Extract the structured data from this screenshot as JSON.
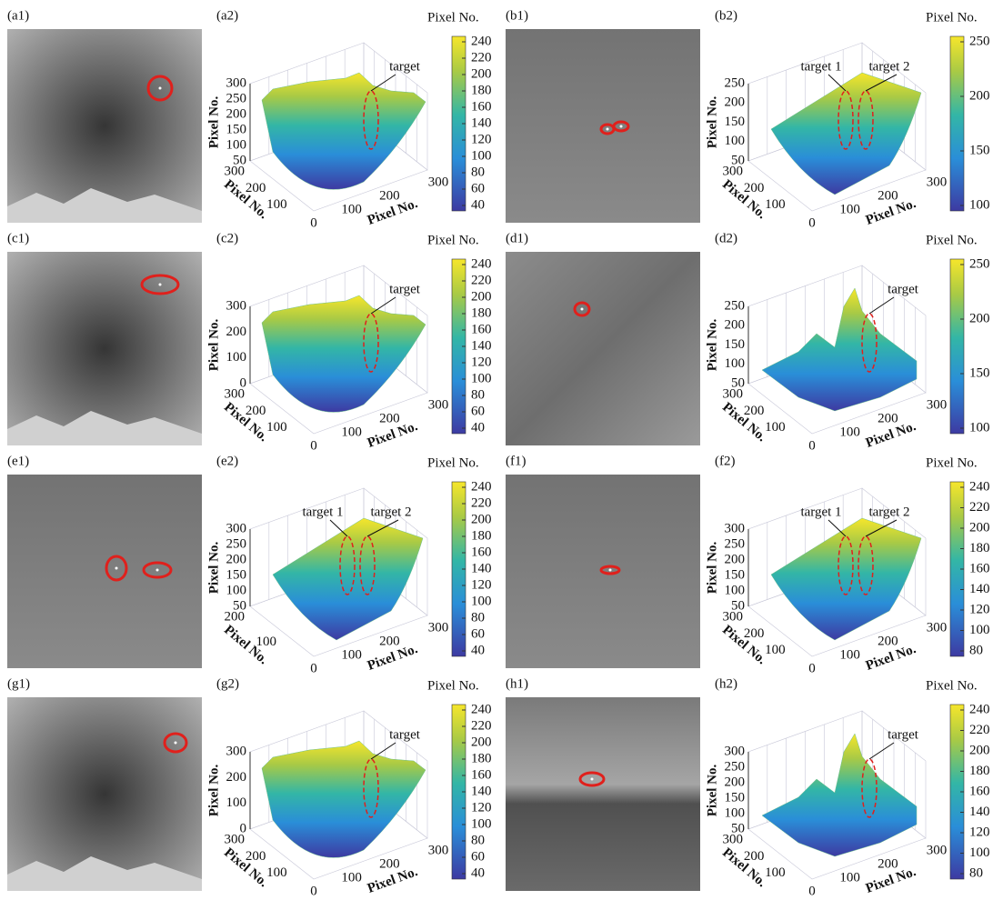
{
  "panels": [
    {
      "image_label": "(a1)",
      "plot_label": "(a2)",
      "colorbar_title": "Pixel No.",
      "colorbar_ticks": [
        240,
        220,
        200,
        180,
        160,
        140,
        120,
        100,
        80,
        60,
        40
      ],
      "z_axis_label": "Pixel No.",
      "z_ticks": [
        300,
        250,
        200,
        150,
        100,
        50
      ],
      "y_axis_label": "Pixel No.",
      "y_ticks": [
        300,
        200,
        100
      ],
      "x_axis_label": "Pixel No.",
      "x_ticks": [
        0,
        100,
        200,
        300
      ],
      "annotations": [
        "target"
      ]
    },
    {
      "image_label": "(b1)",
      "plot_label": "(b2)",
      "colorbar_title": "Pixel No.",
      "colorbar_ticks": [
        250,
        200,
        150,
        100
      ],
      "z_axis_label": "Pixel No.",
      "z_ticks": [
        250,
        200,
        150,
        100,
        50
      ],
      "y_axis_label": "Pixel No.",
      "y_ticks": [
        300,
        200,
        100
      ],
      "x_axis_label": "Pixel No.",
      "x_ticks": [
        0,
        100,
        200,
        300
      ],
      "annotations": [
        "target 1",
        "target 2"
      ]
    },
    {
      "image_label": "(c1)",
      "plot_label": "(c2)",
      "colorbar_title": "Pixel No.",
      "colorbar_ticks": [
        240,
        220,
        200,
        180,
        160,
        140,
        120,
        100,
        80,
        60,
        40
      ],
      "z_axis_label": "Pixel No.",
      "z_ticks": [
        300,
        200,
        100,
        0
      ],
      "y_axis_label": "Pixel No.",
      "y_ticks": [
        300,
        200,
        100
      ],
      "x_axis_label": "Pixel No.",
      "x_ticks": [
        0,
        100,
        200,
        300
      ],
      "annotations": [
        "target"
      ]
    },
    {
      "image_label": "(d1)",
      "plot_label": "(d2)",
      "colorbar_title": "Pixel No.",
      "colorbar_ticks": [
        250,
        200,
        150,
        100
      ],
      "z_axis_label": "Pixel No.",
      "z_ticks": [
        250,
        200,
        150,
        100,
        50
      ],
      "y_axis_label": "Pixel No.",
      "y_ticks": [
        300,
        200,
        100
      ],
      "x_axis_label": "Pixel No.",
      "x_ticks": [
        0,
        100,
        200,
        300
      ],
      "annotations": [
        "target"
      ]
    },
    {
      "image_label": "(e1)",
      "plot_label": "(e2)",
      "colorbar_title": "Pixel No.",
      "colorbar_ticks": [
        240,
        220,
        200,
        180,
        160,
        140,
        120,
        100,
        80,
        60,
        40
      ],
      "z_axis_label": "Pixel No.",
      "z_ticks": [
        300,
        250,
        200,
        150,
        100,
        50
      ],
      "y_axis_label": "Pixel No.",
      "y_ticks": [
        200,
        100
      ],
      "x_axis_label": "Pixel No.",
      "x_ticks": [
        0,
        100,
        200,
        300
      ],
      "annotations": [
        "target 1",
        "target 2"
      ]
    },
    {
      "image_label": "(f1)",
      "plot_label": "(f2)",
      "colorbar_title": "Pixel No.",
      "colorbar_ticks": [
        240,
        220,
        200,
        180,
        160,
        140,
        120,
        100,
        80
      ],
      "z_axis_label": "Pixel No.",
      "z_ticks": [
        300,
        250,
        200,
        150,
        100,
        50
      ],
      "y_axis_label": "Pixel No.",
      "y_ticks": [
        300,
        200,
        100
      ],
      "x_axis_label": "Pixel No.",
      "x_ticks": [
        0,
        100,
        200,
        300
      ],
      "annotations": [
        "target 1",
        "target 2"
      ]
    },
    {
      "image_label": "(g1)",
      "plot_label": "(g2)",
      "colorbar_title": "Pixel No.",
      "colorbar_ticks": [
        240,
        220,
        200,
        180,
        160,
        140,
        120,
        100,
        80,
        60,
        40
      ],
      "z_axis_label": "Pixel No.",
      "z_ticks": [
        300,
        200,
        100,
        0
      ],
      "y_axis_label": "Pixel No.",
      "y_ticks": [
        300,
        200,
        100
      ],
      "x_axis_label": "Pixel No.",
      "x_ticks": [
        0,
        100,
        200,
        300
      ],
      "annotations": [
        "target"
      ]
    },
    {
      "image_label": "(h1)",
      "plot_label": "(h2)",
      "colorbar_title": "Pixel No.",
      "colorbar_ticks": [
        240,
        220,
        200,
        180,
        160,
        140,
        120,
        100,
        80
      ],
      "z_axis_label": "Pixel No.",
      "z_ticks": [
        300,
        250,
        200,
        150,
        100,
        50
      ],
      "y_axis_label": "Pixel No.",
      "y_ticks": [
        300,
        200,
        100
      ],
      "x_axis_label": "Pixel No.",
      "x_ticks": [
        0,
        100,
        200,
        300
      ],
      "annotations": [
        "target"
      ]
    }
  ]
}
